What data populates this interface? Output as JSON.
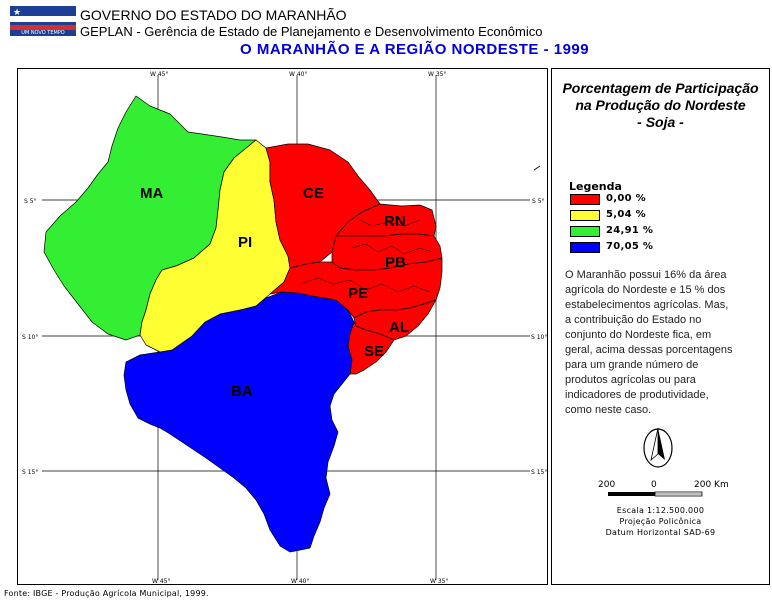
{
  "header": {
    "logo_line1": "GOVERNO DO MARANHÃO",
    "logo_line2": "UM NOVO TEMPO",
    "line1": "GOVERNO DO ESTADO DO MARANHÃO",
    "line2": "GEPLAN - Gerência de Estado de Planejamento e Desenvolvimento Econômico"
  },
  "map_title": "O MARANHÃO E A REGIÃO NORDESTE - 1999",
  "grid": {
    "top_labels": [
      "W 45°",
      "W 40°",
      "W 35°"
    ],
    "bottom_labels": [
      "W 45°",
      "W 40°",
      "W 35°"
    ],
    "left_labels": [
      "S 5°",
      "S 10°",
      "S 15°"
    ],
    "right_labels": [
      "S 5°",
      "S 10°",
      "S 15°"
    ]
  },
  "states": [
    {
      "abbr": "MA",
      "value": "24,91 %",
      "color": "#33ee33"
    },
    {
      "abbr": "PI",
      "value": "5,04 %",
      "color": "#ffff33"
    },
    {
      "abbr": "CE",
      "value": "0,00 %",
      "color": "#ff0000"
    },
    {
      "abbr": "RN",
      "value": "0,00 %",
      "color": "#ff0000"
    },
    {
      "abbr": "PB",
      "value": "0,00 %",
      "color": "#ff0000"
    },
    {
      "abbr": "PE",
      "value": "0,00 %",
      "color": "#ff0000"
    },
    {
      "abbr": "AL",
      "value": "0,00 %",
      "color": "#ff0000"
    },
    {
      "abbr": "SE",
      "value": "0,00 %",
      "color": "#ff0000"
    },
    {
      "abbr": "BA",
      "value": "70,05 %",
      "color": "#0000ff"
    }
  ],
  "panel": {
    "title_line1": "Porcentagem de Participação",
    "title_line2": "na Produção do Nordeste",
    "title_line3": "- Soja -"
  },
  "legend": {
    "title": "Legenda",
    "items": [
      {
        "label": "0,00 %",
        "color": "#ff0000"
      },
      {
        "label": "5,04 %",
        "color": "#ffff33"
      },
      {
        "label": "24,91 %",
        "color": "#33ee33"
      },
      {
        "label": "70,05 %",
        "color": "#0000ff"
      }
    ]
  },
  "description_lines": [
    "O Maranhão possui 16% da área",
    "agrícola do Nordeste e 15 % dos",
    "estabelecimentos agrícolas. Mas,",
    "a contribuição do Estado no",
    "conjunto do Nordeste fica, em",
    "geral, acima dessas porcentagens",
    "para um grande número de",
    "produtos agrícolas ou para",
    "indicadores de produtividade,",
    "como neste caso."
  ],
  "north_arrow_icon": "north-arrow-icon",
  "scale": {
    "left": "200",
    "mid": "0",
    "right": "200 Km",
    "line1": "Escala 1:12.500.000",
    "line2": "Projeção Policônica",
    "line3": "Datum Horizontal SAD-69"
  },
  "source": "Fonte: IBGE - Produção Agrícola Municipal, 1999."
}
